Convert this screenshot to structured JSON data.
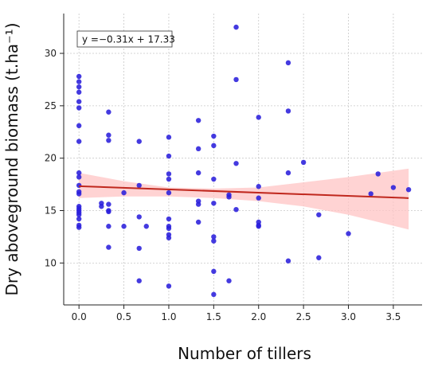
{
  "chart_data": {
    "type": "scatter",
    "title": "",
    "xlabel": "Number of tillers",
    "ylabel": "Dry aboveground biomass (t.ha⁻¹)",
    "xlim": [
      -0.17,
      3.82
    ],
    "ylim": [
      6.0,
      33.8
    ],
    "xticks": [
      0.0,
      0.5,
      1.0,
      1.5,
      2.0,
      2.5,
      3.0,
      3.5
    ],
    "xtick_labels": [
      "0.0",
      "0.5",
      "1.0",
      "1.5",
      "2.0",
      "2.5",
      "3.0",
      "3.5"
    ],
    "yticks": [
      10,
      15,
      20,
      25,
      30
    ],
    "ytick_labels": [
      "10",
      "15",
      "20",
      "25",
      "30"
    ],
    "grid": true,
    "point_color": "#2a1fdc",
    "line_color": "#c0281e",
    "band_color": "#ffc4c4",
    "annotation": "y =−0.31x + 17.33",
    "regression": {
      "slope": -0.31,
      "intercept": 17.33,
      "x_start": 0.0,
      "x_end": 3.67
    },
    "confidence_band": {
      "x": [
        0.0,
        0.5,
        1.0,
        1.5,
        2.0,
        2.5,
        3.0,
        3.67
      ],
      "lower": [
        16.2,
        16.35,
        16.35,
        16.2,
        15.9,
        15.4,
        14.6,
        13.2
      ],
      "upper": [
        18.6,
        17.8,
        17.2,
        17.1,
        17.2,
        17.7,
        18.2,
        19.0
      ]
    },
    "points": [
      {
        "x": 0.0,
        "y": 27.8
      },
      {
        "x": 0.0,
        "y": 27.3
      },
      {
        "x": 0.0,
        "y": 26.8
      },
      {
        "x": 0.0,
        "y": 26.3
      },
      {
        "x": 0.0,
        "y": 25.4
      },
      {
        "x": 0.0,
        "y": 24.8
      },
      {
        "x": 0.0,
        "y": 23.1
      },
      {
        "x": 0.0,
        "y": 21.6
      },
      {
        "x": 0.0,
        "y": 18.6
      },
      {
        "x": 0.0,
        "y": 18.2
      },
      {
        "x": 0.0,
        "y": 17.4
      },
      {
        "x": 0.0,
        "y": 16.8
      },
      {
        "x": 0.0,
        "y": 16.6
      },
      {
        "x": 0.0,
        "y": 15.4
      },
      {
        "x": 0.0,
        "y": 15.2
      },
      {
        "x": 0.0,
        "y": 15.0
      },
      {
        "x": 0.0,
        "y": 14.8
      },
      {
        "x": 0.0,
        "y": 14.6
      },
      {
        "x": 0.0,
        "y": 14.2
      },
      {
        "x": 0.0,
        "y": 13.6
      },
      {
        "x": 0.0,
        "y": 13.4
      },
      {
        "x": 0.25,
        "y": 15.7
      },
      {
        "x": 0.25,
        "y": 15.4
      },
      {
        "x": 0.33,
        "y": 24.4
      },
      {
        "x": 0.33,
        "y": 22.2
      },
      {
        "x": 0.33,
        "y": 21.7
      },
      {
        "x": 0.33,
        "y": 15.6
      },
      {
        "x": 0.33,
        "y": 15.0
      },
      {
        "x": 0.33,
        "y": 14.9
      },
      {
        "x": 0.33,
        "y": 13.5
      },
      {
        "x": 0.33,
        "y": 11.5
      },
      {
        "x": 0.5,
        "y": 16.7
      },
      {
        "x": 0.5,
        "y": 13.5
      },
      {
        "x": 0.67,
        "y": 21.6
      },
      {
        "x": 0.67,
        "y": 17.4
      },
      {
        "x": 0.67,
        "y": 14.4
      },
      {
        "x": 0.67,
        "y": 11.4
      },
      {
        "x": 0.67,
        "y": 8.3
      },
      {
        "x": 0.75,
        "y": 13.5
      },
      {
        "x": 1.0,
        "y": 22.0
      },
      {
        "x": 1.0,
        "y": 20.2
      },
      {
        "x": 1.0,
        "y": 18.5
      },
      {
        "x": 1.0,
        "y": 18.0
      },
      {
        "x": 1.0,
        "y": 16.7
      },
      {
        "x": 1.0,
        "y": 14.2
      },
      {
        "x": 1.0,
        "y": 13.5
      },
      {
        "x": 1.0,
        "y": 13.3
      },
      {
        "x": 1.0,
        "y": 12.7
      },
      {
        "x": 1.0,
        "y": 12.4
      },
      {
        "x": 1.0,
        "y": 7.8
      },
      {
        "x": 1.33,
        "y": 23.6
      },
      {
        "x": 1.33,
        "y": 20.9
      },
      {
        "x": 1.33,
        "y": 18.6
      },
      {
        "x": 1.33,
        "y": 15.9
      },
      {
        "x": 1.33,
        "y": 15.6
      },
      {
        "x": 1.33,
        "y": 13.9
      },
      {
        "x": 1.5,
        "y": 22.1
      },
      {
        "x": 1.5,
        "y": 21.2
      },
      {
        "x": 1.5,
        "y": 18.0
      },
      {
        "x": 1.5,
        "y": 15.7
      },
      {
        "x": 1.5,
        "y": 12.5
      },
      {
        "x": 1.5,
        "y": 12.1
      },
      {
        "x": 1.5,
        "y": 9.2
      },
      {
        "x": 1.5,
        "y": 7.0
      },
      {
        "x": 1.67,
        "y": 16.5
      },
      {
        "x": 1.67,
        "y": 16.3
      },
      {
        "x": 1.67,
        "y": 8.3
      },
      {
        "x": 1.75,
        "y": 32.5
      },
      {
        "x": 1.75,
        "y": 27.5
      },
      {
        "x": 1.75,
        "y": 19.5
      },
      {
        "x": 1.75,
        "y": 15.1
      },
      {
        "x": 2.0,
        "y": 23.9
      },
      {
        "x": 2.0,
        "y": 17.3
      },
      {
        "x": 2.0,
        "y": 16.2
      },
      {
        "x": 2.0,
        "y": 13.9
      },
      {
        "x": 2.0,
        "y": 13.6
      },
      {
        "x": 2.0,
        "y": 13.5
      },
      {
        "x": 2.33,
        "y": 29.1
      },
      {
        "x": 2.33,
        "y": 24.5
      },
      {
        "x": 2.33,
        "y": 18.6
      },
      {
        "x": 2.33,
        "y": 10.2
      },
      {
        "x": 2.5,
        "y": 19.6
      },
      {
        "x": 2.67,
        "y": 14.6
      },
      {
        "x": 2.67,
        "y": 10.5
      },
      {
        "x": 3.0,
        "y": 12.8
      },
      {
        "x": 3.25,
        "y": 16.6
      },
      {
        "x": 3.33,
        "y": 18.5
      },
      {
        "x": 3.5,
        "y": 17.2
      },
      {
        "x": 3.67,
        "y": 17.0
      }
    ]
  }
}
